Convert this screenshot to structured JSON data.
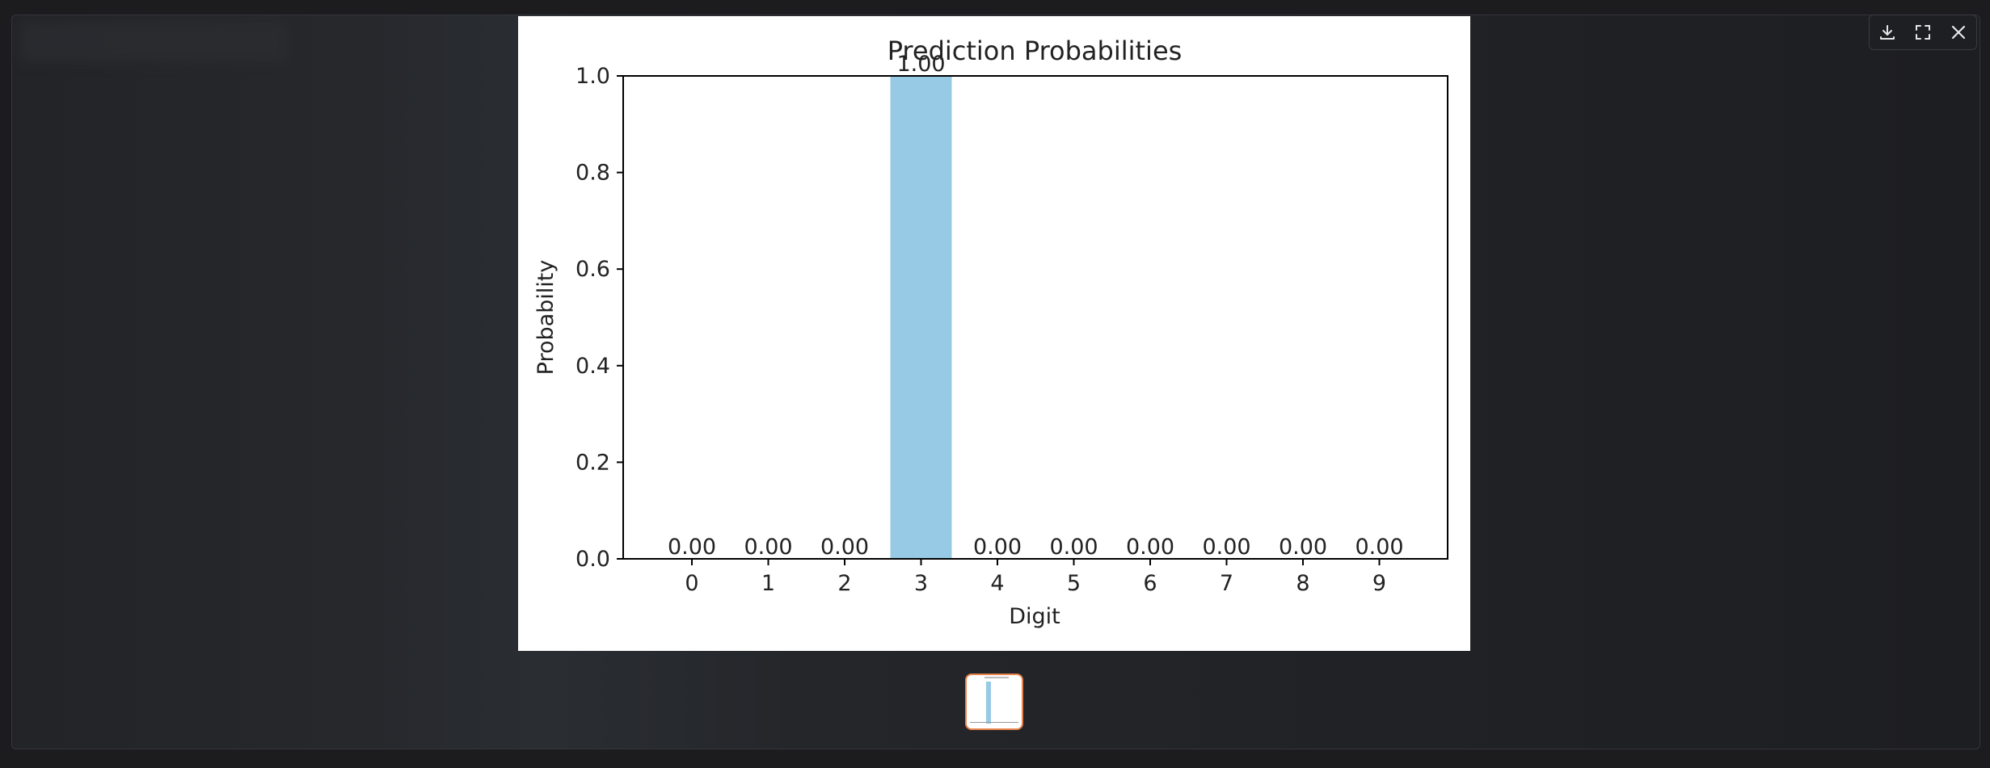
{
  "viewer": {
    "toolbar": {
      "download_icon": "download-icon",
      "fullscreen_icon": "fullscreen-icon",
      "close_icon": "close-icon"
    },
    "colors": {
      "bar": "#97cbe5",
      "thumb_border": "#e8844c"
    }
  },
  "chart_data": {
    "type": "bar",
    "title": "Prediction Probabilities",
    "xlabel": "Digit",
    "ylabel": "Probability",
    "categories": [
      "0",
      "1",
      "2",
      "3",
      "4",
      "5",
      "6",
      "7",
      "8",
      "9"
    ],
    "values": [
      0,
      0,
      0,
      1,
      0,
      0,
      0,
      0,
      0,
      0
    ],
    "data_labels": [
      "0.00",
      "0.00",
      "0.00",
      "1.00",
      "0.00",
      "0.00",
      "0.00",
      "0.00",
      "0.00",
      "0.00"
    ],
    "ylim": [
      0,
      1
    ],
    "yticks": [
      "0.0",
      "0.2",
      "0.4",
      "0.6",
      "0.8",
      "1.0"
    ],
    "grid": false,
    "bar_color": "#97cbe5"
  }
}
